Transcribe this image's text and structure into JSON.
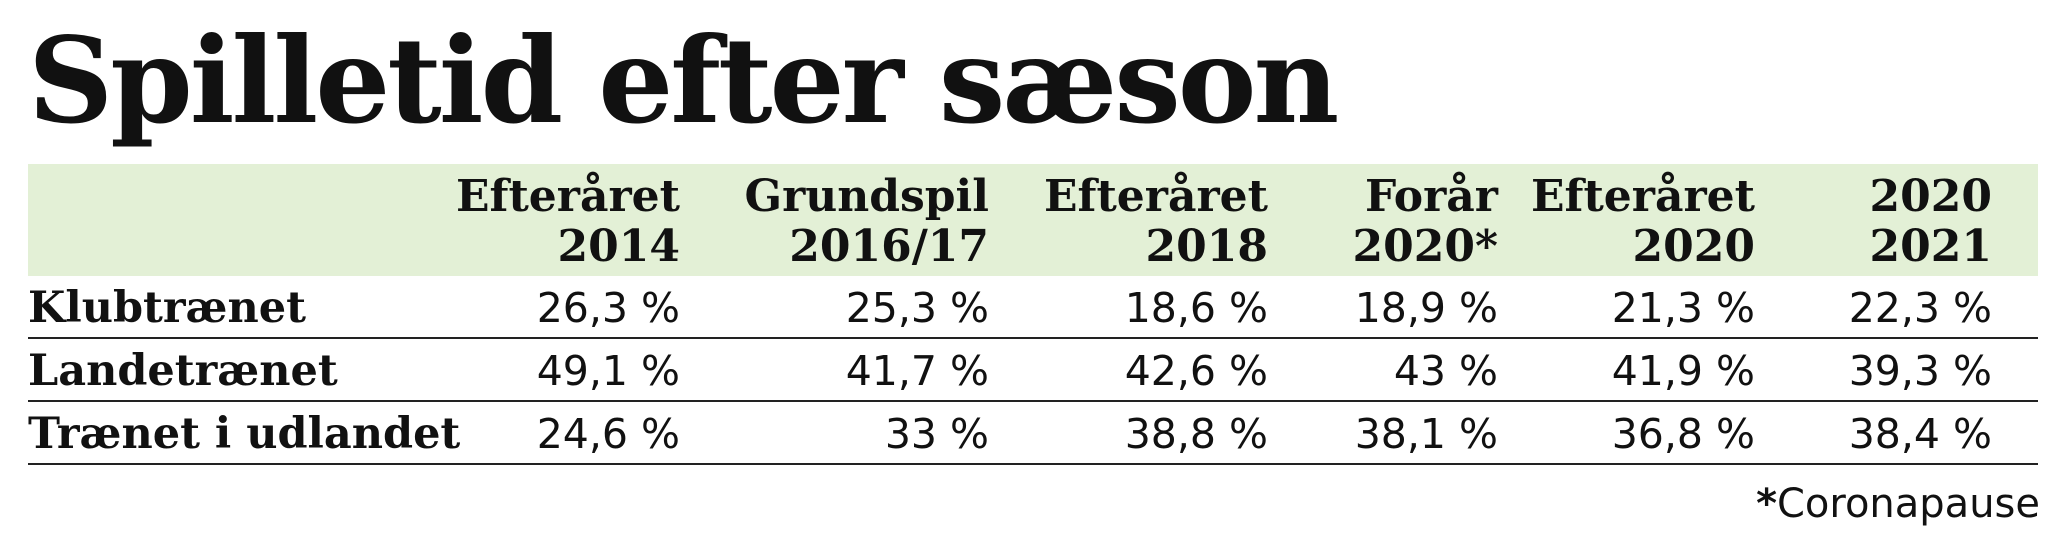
{
  "title": "Spilletid efter sæson",
  "colors": {
    "header_band": "#e3f0d6",
    "text": "#111111",
    "rule": "#222222"
  },
  "columns": [
    {
      "line1": "Efteråret",
      "line2": "2014"
    },
    {
      "line1": "Grundspil",
      "line2": "2016/17"
    },
    {
      "line1": "Efteråret",
      "line2": "2018"
    },
    {
      "line1": "Forår",
      "line2": "2020*"
    },
    {
      "line1": "Efteråret",
      "line2": "2020"
    },
    {
      "line1": "2020",
      "line2": "2021"
    }
  ],
  "rows": [
    {
      "label": "Klubtrænet",
      "cells": [
        "26,3 %",
        "25,3 %",
        "18,6 %",
        "18,9 %",
        "21,3 %",
        "22,3 %"
      ]
    },
    {
      "label": "Landetrænet",
      "cells": [
        "49,1 %",
        "41,7 %",
        "42,6 %",
        "43 %",
        "41,9 %",
        "39,3 %"
      ]
    },
    {
      "label": "Trænet i udlandet",
      "cells": [
        "24,6 %",
        "33 %",
        "38,8 %",
        "38,1 %",
        "36,8 %",
        "38,4 %"
      ]
    }
  ],
  "footnote": {
    "star": "*",
    "text": "Coronapause"
  },
  "chart_data": {
    "type": "table",
    "title": "Spilletid efter sæson",
    "categories": [
      "Efteråret 2014",
      "Grundspil 2016/17",
      "Efteråret 2018",
      "Forår 2020*",
      "Efteråret 2020",
      "2020 2021"
    ],
    "series": [
      {
        "name": "Klubtrænet",
        "values": [
          26.3,
          25.3,
          18.6,
          18.9,
          21.3,
          22.3
        ]
      },
      {
        "name": "Landetrænet",
        "values": [
          49.1,
          41.7,
          42.6,
          43,
          41.9,
          39.3
        ]
      },
      {
        "name": "Trænet i udlandet",
        "values": [
          24.6,
          33,
          38.8,
          38.1,
          36.8,
          38.4
        ]
      }
    ],
    "unit": "%",
    "annotations": [
      "*Coronapause"
    ]
  }
}
